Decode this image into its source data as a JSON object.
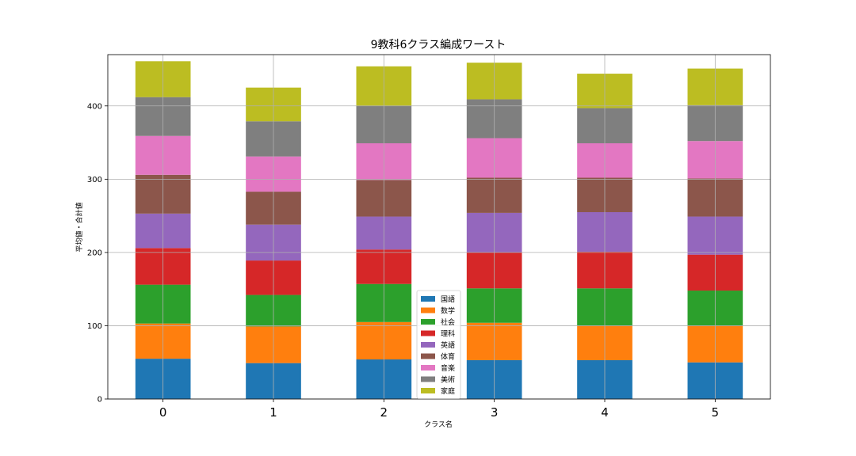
{
  "chart_data": {
    "type": "bar",
    "stacked": true,
    "title": "9教科6クラス編成ワースト",
    "xlabel": "クラス名",
    "ylabel": "平均値・合計値",
    "categories": [
      "0",
      "1",
      "2",
      "3",
      "4",
      "5"
    ],
    "ylim": [
      0,
      470
    ],
    "yticks": [
      0,
      100,
      200,
      300,
      400
    ],
    "grid": true,
    "legend_position": "bottom-center",
    "series": [
      {
        "name": "国語",
        "color": "#1f77b4",
        "values": [
          55,
          49,
          54,
          53,
          53,
          50
        ]
      },
      {
        "name": "数学",
        "color": "#ff7f0e",
        "values": [
          48,
          50,
          51,
          51,
          47,
          50
        ]
      },
      {
        "name": "社会",
        "color": "#2ca02c",
        "values": [
          53,
          43,
          52,
          47,
          51,
          48
        ]
      },
      {
        "name": "理科",
        "color": "#d62728",
        "values": [
          50,
          47,
          47,
          49,
          50,
          49
        ]
      },
      {
        "name": "英語",
        "color": "#9467bd",
        "values": [
          47,
          49,
          45,
          54,
          54,
          52
        ]
      },
      {
        "name": "体育",
        "color": "#8c564b",
        "values": [
          53,
          45,
          50,
          48,
          47,
          52
        ]
      },
      {
        "name": "音楽",
        "color": "#e377c2",
        "values": [
          53,
          48,
          50,
          54,
          47,
          51
        ]
      },
      {
        "name": "美術",
        "color": "#7f7f7f",
        "values": [
          53,
          48,
          51,
          53,
          48,
          49
        ]
      },
      {
        "name": "家庭",
        "color": "#bcbd22",
        "values": [
          49,
          46,
          54,
          50,
          47,
          50
        ]
      }
    ]
  }
}
